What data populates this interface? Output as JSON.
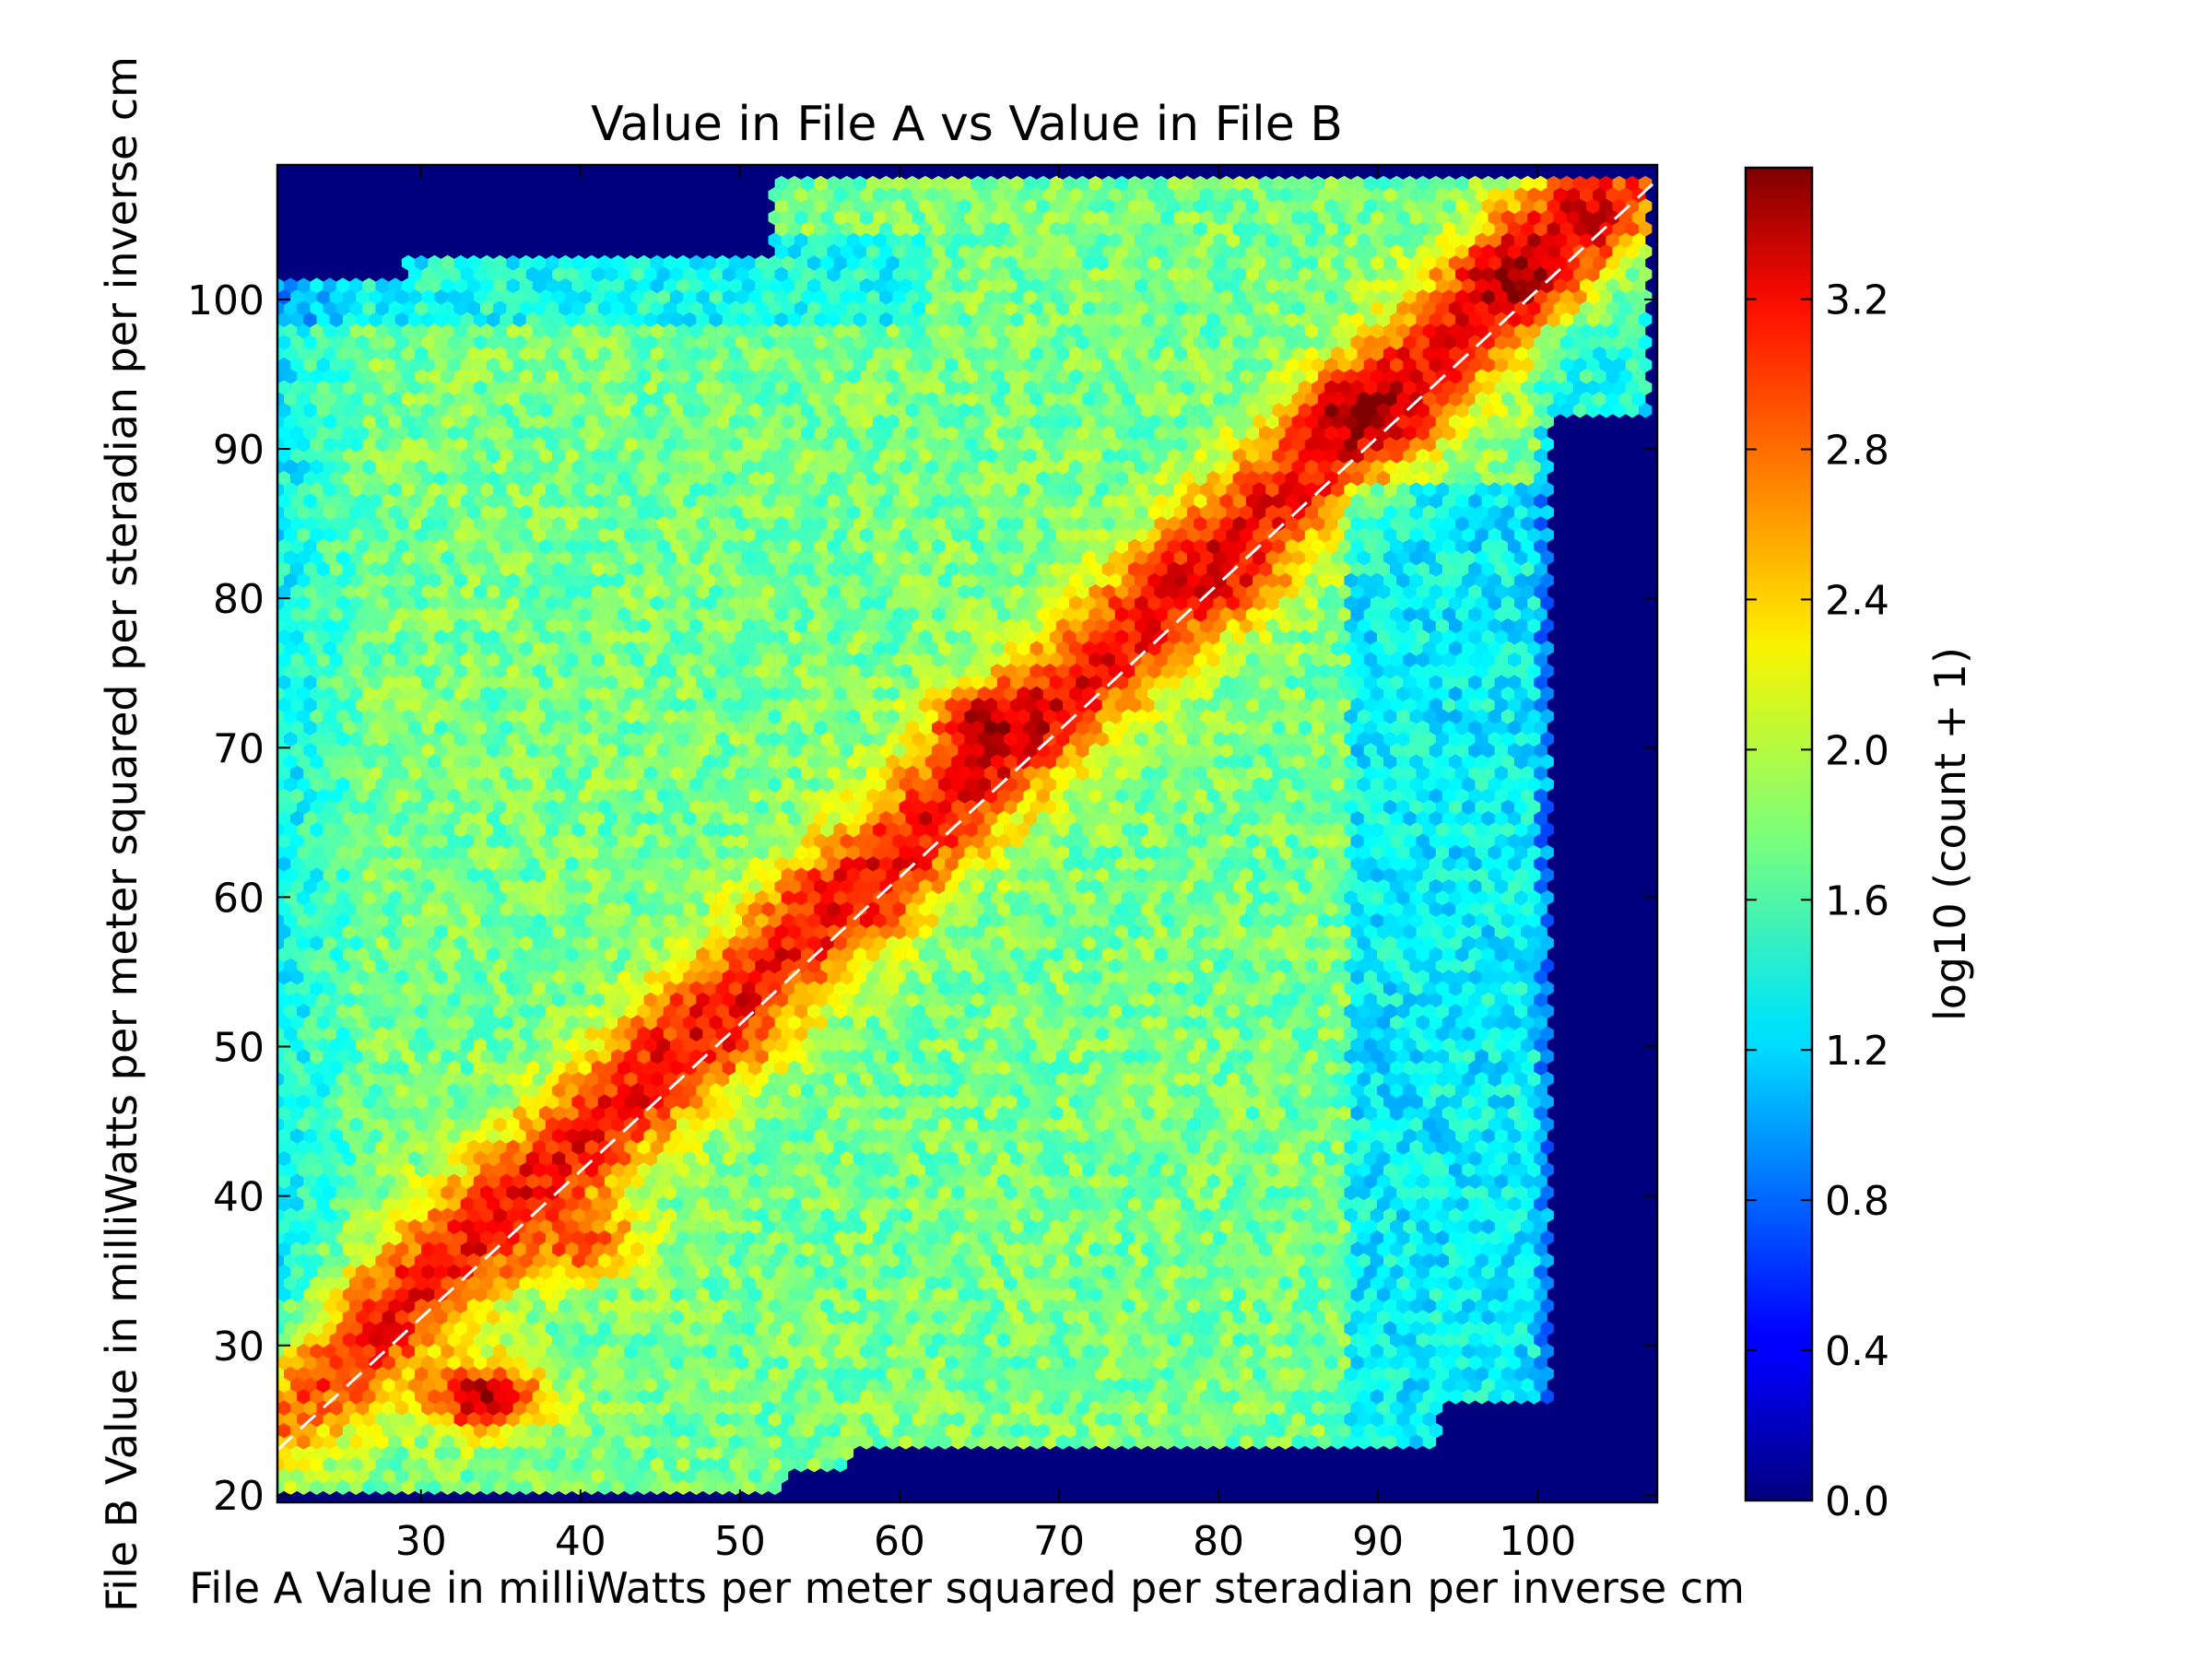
{
  "chart_data": {
    "type": "heatmap",
    "subtype": "hexbin",
    "title": "Value in File A vs Value in File B",
    "xlabel": "File A Value in milliWatts per meter squared per steradian per inverse cm",
    "ylabel": "File B Value in milliWatts per meter squared per steradian per inverse cm",
    "xlim": [
      21,
      107.5
    ],
    "ylim": [
      19.5,
      109
    ],
    "x_ticks": [
      30,
      40,
      50,
      60,
      70,
      80,
      90,
      100
    ],
    "y_ticks": [
      20,
      30,
      40,
      50,
      60,
      70,
      80,
      90,
      100
    ],
    "x_tick_labels": [
      "30",
      "40",
      "50",
      "60",
      "70",
      "80",
      "90",
      "100"
    ],
    "y_tick_labels": [
      "20",
      "30",
      "40",
      "50",
      "60",
      "70",
      "80",
      "90",
      "100"
    ],
    "colorbar": {
      "label": "log10 (count + 1)",
      "range": [
        0.0,
        3.55
      ],
      "ticks": [
        0.0,
        0.4,
        0.8,
        1.2,
        1.6,
        2.0,
        2.4,
        2.8,
        3.2
      ],
      "tick_labels": [
        "0.0",
        "0.4",
        "0.8",
        "1.2",
        "1.6",
        "2.0",
        "2.4",
        "2.8",
        "3.2"
      ],
      "colormap": "jet"
    },
    "reference_line": {
      "style": "dashed",
      "color": "#ffffff",
      "x": [
        21,
        107.5
      ],
      "y": [
        23,
        108
      ]
    },
    "background_color": "#00007f",
    "grid": false,
    "legend": "none",
    "data_summary": {
      "populated_region_x": [
        21,
        107
      ],
      "populated_region_y": [
        20,
        108
      ],
      "peak_value": 3.5,
      "high_density_clusters": [
        {
          "x": 34,
          "y": 26.5,
          "value": 3.45
        },
        {
          "x": 66,
          "y": 71.5,
          "value": 3.4
        },
        {
          "x": 89,
          "y": 92.5,
          "value": 3.5
        },
        {
          "x": 99,
          "y": 101.5,
          "value": 3.45
        },
        {
          "x": 103,
          "y": 105.5,
          "value": 3.3
        },
        {
          "x": 80,
          "y": 81.5,
          "value": 3.15
        },
        {
          "x": 48,
          "y": 51,
          "value": 3.0
        },
        {
          "x": 57,
          "y": 60,
          "value": 3.0
        },
        {
          "x": 40,
          "y": 37,
          "value": 2.9
        }
      ]
    }
  }
}
